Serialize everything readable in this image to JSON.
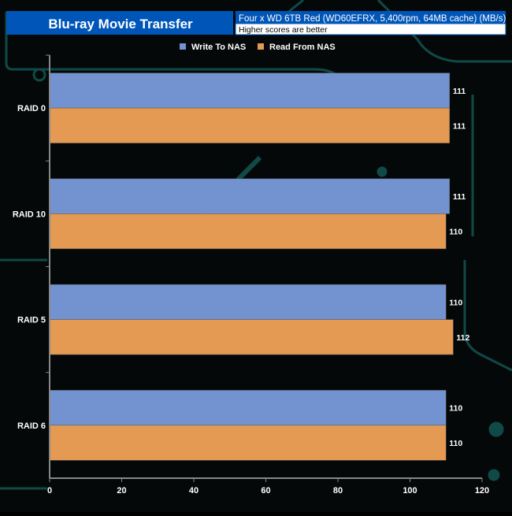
{
  "chart_data": {
    "type": "bar",
    "orientation": "horizontal",
    "title": "Blu-ray Movie Transfer",
    "subtitle": "Four x WD 6TB Red (WD60EFRX, 5,400rpm, 64MB cache) (MB/s)",
    "note": "Higher scores are better",
    "categories": [
      "RAID 0",
      "RAID 10",
      "RAID 5",
      "RAID 6"
    ],
    "series": [
      {
        "name": "Write To NAS",
        "color": "#7393d0",
        "values": [
          111,
          111,
          110,
          110
        ]
      },
      {
        "name": "Read From NAS",
        "color": "#e49a52",
        "values": [
          111,
          110,
          112,
          110
        ]
      }
    ],
    "xlim": [
      0,
      120
    ],
    "xticks": [
      0,
      20,
      40,
      60,
      80,
      100,
      120
    ],
    "legend": "top-center",
    "grid": false
  }
}
